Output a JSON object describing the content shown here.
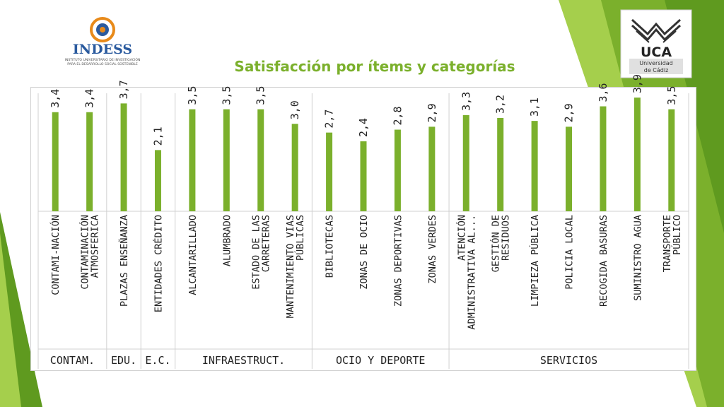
{
  "title": "Satisfacción por ítems y categorías",
  "logos": {
    "indess_name": "INDESS",
    "indess_sub1": "INSTITUTO UNIVERSITARIO DE INVESTIGACIÓN",
    "indess_sub2": "PARA EL DESARROLLO SOCIAL SOSTENIBLE",
    "uca_name": "UCA",
    "uca_sub1": "Universidad",
    "uca_sub2": "de Cádiz"
  },
  "colors": {
    "bar": "#7bb02c",
    "title": "#7bb02c",
    "accent_light": "#a5cf4c",
    "accent_dark": "#5f9a1f"
  },
  "chart_data": {
    "type": "bar",
    "title": "Satisfacción por ítems y categorías",
    "ylim": [
      0,
      4
    ],
    "grid": false,
    "legend": "none",
    "categories": [
      [
        "CONTAMI-NACIÓN"
      ],
      [
        "CONTAMINACIÓN",
        "ATMOSFERICA"
      ],
      [
        "PLAZAS ENSEÑANZA"
      ],
      [
        "ENTIDADES CRÉDITO"
      ],
      [
        "ALCANTARILLADO"
      ],
      [
        "ALUMBRADO"
      ],
      [
        "ESTADO DE LAS",
        "CARRETERAS"
      ],
      [
        "MANTENIMIENTO VIAS",
        "PÚBLICAS"
      ],
      [
        "BIBLIOTECAS"
      ],
      [
        "ZONAS DE OCIO"
      ],
      [
        "ZONAS DEPORTIVAS"
      ],
      [
        "ZONAS VERDES"
      ],
      [
        "ATENCIÓN",
        "ADMINISTRATIVA AL..."
      ],
      [
        "GESTIÓN DE",
        "RESIDUOS"
      ],
      [
        "LIMPIEZA PÚBLICA"
      ],
      [
        "POLICIA LOCAL"
      ],
      [
        "RECOGIDA BASURAS"
      ],
      [
        "SUMINISTRO AGUA"
      ],
      [
        "TRANSPORTE",
        "PÚBLICO"
      ]
    ],
    "values": [
      3.4,
      3.4,
      3.7,
      2.1,
      3.5,
      3.5,
      3.5,
      3.0,
      2.7,
      2.4,
      2.8,
      2.9,
      3.3,
      3.2,
      3.1,
      2.9,
      3.6,
      3.9,
      3.5
    ],
    "value_labels": [
      "3,4",
      "3,4",
      "3,7",
      "2,1",
      "3,5",
      "3,5",
      "3,5",
      "3,0",
      "2,7",
      "2,4",
      "2,8",
      "2,9",
      "3,3",
      "3,2",
      "3,1",
      "2,9",
      "3,6",
      "3,9",
      "3,5"
    ],
    "groups": [
      {
        "name": "CONTAM.",
        "span": 2
      },
      {
        "name": "EDU.",
        "span": 1
      },
      {
        "name": "E.C.",
        "span": 1
      },
      {
        "name": "INFRAESTRUCT.",
        "span": 4
      },
      {
        "name": "OCIO Y DEPORTE",
        "span": 4
      },
      {
        "name": "SERVICIOS",
        "span": 7
      }
    ]
  }
}
